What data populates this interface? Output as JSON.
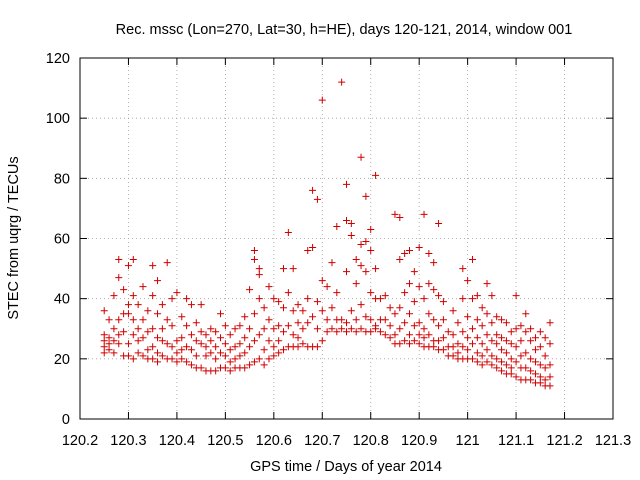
{
  "chart_data": {
    "type": "scatter",
    "title": "Rec. mssc (Lon=270, Lat=30, h=HE), days 120-121, 2014, window 001",
    "xlabel": "GPS time / Days of year 2014",
    "ylabel": "STEC from uqrg / TECUs",
    "xlim": [
      120.2,
      121.3
    ],
    "ylim": [
      0,
      120
    ],
    "xticks": [
      120.2,
      120.3,
      120.4,
      120.5,
      120.6,
      120.7,
      120.8,
      120.9,
      121.0,
      121.1,
      121.2,
      121.3
    ],
    "xtick_labels": [
      "120.2",
      "120.3",
      "120.4",
      "120.5",
      "120.6",
      "120.7",
      "120.8",
      "120.9",
      "121",
      "121.1",
      "121.2",
      "121.3"
    ],
    "yticks": [
      0,
      20,
      40,
      60,
      80,
      100,
      120
    ],
    "ytick_labels": [
      "0",
      "20",
      "40",
      "60",
      "80",
      "100",
      "120"
    ],
    "grid": true,
    "marker": "+",
    "color": "#d00000",
    "points": [
      [
        120.25,
        36
      ],
      [
        120.25,
        28
      ],
      [
        120.25,
        26
      ],
      [
        120.25,
        24
      ],
      [
        120.25,
        22
      ],
      [
        120.26,
        33
      ],
      [
        120.26,
        27
      ],
      [
        120.26,
        25
      ],
      [
        120.26,
        23
      ],
      [
        120.27,
        41
      ],
      [
        120.27,
        30
      ],
      [
        120.27,
        26
      ],
      [
        120.27,
        22
      ],
      [
        120.28,
        53
      ],
      [
        120.28,
        47
      ],
      [
        120.28,
        33
      ],
      [
        120.28,
        28
      ],
      [
        120.28,
        25
      ],
      [
        120.29,
        43
      ],
      [
        120.29,
        35
      ],
      [
        120.29,
        29
      ],
      [
        120.29,
        21
      ],
      [
        120.3,
        51
      ],
      [
        120.3,
        38
      ],
      [
        120.3,
        35
      ],
      [
        120.3,
        25
      ],
      [
        120.3,
        21
      ],
      [
        120.31,
        53
      ],
      [
        120.31,
        41
      ],
      [
        120.31,
        33
      ],
      [
        120.31,
        28
      ],
      [
        120.31,
        20
      ],
      [
        120.32,
        38
      ],
      [
        120.32,
        30
      ],
      [
        120.32,
        26
      ],
      [
        120.32,
        22
      ],
      [
        120.33,
        44
      ],
      [
        120.33,
        33
      ],
      [
        120.33,
        27
      ],
      [
        120.33,
        21
      ],
      [
        120.34,
        36
      ],
      [
        120.34,
        29
      ],
      [
        120.34,
        23
      ],
      [
        120.34,
        20
      ],
      [
        120.35,
        51
      ],
      [
        120.35,
        41
      ],
      [
        120.35,
        30
      ],
      [
        120.35,
        24
      ],
      [
        120.35,
        20
      ],
      [
        120.36,
        46
      ],
      [
        120.36,
        35
      ],
      [
        120.36,
        27
      ],
      [
        120.36,
        22
      ],
      [
        120.36,
        19
      ],
      [
        120.37,
        38
      ],
      [
        120.37,
        30
      ],
      [
        120.37,
        26
      ],
      [
        120.37,
        21
      ],
      [
        120.38,
        52
      ],
      [
        120.38,
        33
      ],
      [
        120.38,
        25
      ],
      [
        120.38,
        20
      ],
      [
        120.39,
        40
      ],
      [
        120.39,
        31
      ],
      [
        120.39,
        24
      ],
      [
        120.39,
        20
      ],
      [
        120.4,
        42
      ],
      [
        120.4,
        26
      ],
      [
        120.4,
        22
      ],
      [
        120.4,
        19
      ],
      [
        120.41,
        34
      ],
      [
        120.41,
        27
      ],
      [
        120.41,
        23
      ],
      [
        120.41,
        20
      ],
      [
        120.42,
        40
      ],
      [
        120.42,
        31
      ],
      [
        120.42,
        24
      ],
      [
        120.42,
        19
      ],
      [
        120.43,
        38
      ],
      [
        120.43,
        28
      ],
      [
        120.43,
        23
      ],
      [
        120.43,
        18
      ],
      [
        120.44,
        32
      ],
      [
        120.44,
        26
      ],
      [
        120.44,
        21
      ],
      [
        120.44,
        17
      ],
      [
        120.45,
        38
      ],
      [
        120.45,
        29
      ],
      [
        120.45,
        25
      ],
      [
        120.45,
        17
      ],
      [
        120.46,
        28
      ],
      [
        120.46,
        24
      ],
      [
        120.46,
        21
      ],
      [
        120.46,
        16
      ],
      [
        120.47,
        30
      ],
      [
        120.47,
        26
      ],
      [
        120.47,
        22
      ],
      [
        120.47,
        16
      ],
      [
        120.48,
        29
      ],
      [
        120.48,
        24
      ],
      [
        120.48,
        20
      ],
      [
        120.48,
        16
      ],
      [
        120.49,
        35
      ],
      [
        120.49,
        27
      ],
      [
        120.49,
        22
      ],
      [
        120.49,
        17
      ],
      [
        120.5,
        31
      ],
      [
        120.5,
        25
      ],
      [
        120.5,
        21
      ],
      [
        120.5,
        17
      ],
      [
        120.51,
        28
      ],
      [
        120.51,
        23
      ],
      [
        120.51,
        19
      ],
      [
        120.51,
        16
      ],
      [
        120.52,
        30
      ],
      [
        120.52,
        24
      ],
      [
        120.52,
        20
      ],
      [
        120.52,
        17
      ],
      [
        120.53,
        31
      ],
      [
        120.53,
        25
      ],
      [
        120.53,
        21
      ],
      [
        120.53,
        17
      ],
      [
        120.54,
        34
      ],
      [
        120.54,
        27
      ],
      [
        120.54,
        22
      ],
      [
        120.54,
        17
      ],
      [
        120.55,
        43
      ],
      [
        120.55,
        30
      ],
      [
        120.55,
        24
      ],
      [
        120.55,
        18
      ],
      [
        120.56,
        56
      ],
      [
        120.56,
        53
      ],
      [
        120.56,
        35
      ],
      [
        120.56,
        26
      ],
      [
        120.56,
        19
      ],
      [
        120.57,
        50
      ],
      [
        120.57,
        48
      ],
      [
        120.57,
        40
      ],
      [
        120.57,
        28
      ],
      [
        120.57,
        20
      ],
      [
        120.58,
        37
      ],
      [
        120.58,
        30
      ],
      [
        120.58,
        23
      ],
      [
        120.58,
        18
      ],
      [
        120.59,
        44
      ],
      [
        120.59,
        33
      ],
      [
        120.59,
        26
      ],
      [
        120.59,
        20
      ],
      [
        120.6,
        40
      ],
      [
        120.6,
        30
      ],
      [
        120.6,
        24
      ],
      [
        120.6,
        21
      ],
      [
        120.61,
        39
      ],
      [
        120.61,
        31
      ],
      [
        120.61,
        26
      ],
      [
        120.61,
        22
      ],
      [
        120.62,
        50
      ],
      [
        120.62,
        37
      ],
      [
        120.62,
        29
      ],
      [
        120.62,
        23
      ],
      [
        120.63,
        62
      ],
      [
        120.63,
        42
      ],
      [
        120.63,
        31
      ],
      [
        120.63,
        24
      ],
      [
        120.64,
        50
      ],
      [
        120.64,
        36
      ],
      [
        120.64,
        28
      ],
      [
        120.64,
        24
      ],
      [
        120.65,
        38
      ],
      [
        120.65,
        32
      ],
      [
        120.65,
        27
      ],
      [
        120.65,
        24
      ],
      [
        120.66,
        36
      ],
      [
        120.66,
        30
      ],
      [
        120.66,
        25
      ],
      [
        120.67,
        56
      ],
      [
        120.67,
        40
      ],
      [
        120.67,
        32
      ],
      [
        120.67,
        24
      ],
      [
        120.68,
        76
      ],
      [
        120.68,
        57
      ],
      [
        120.68,
        34
      ],
      [
        120.68,
        24
      ],
      [
        120.69,
        73
      ],
      [
        120.69,
        39
      ],
      [
        120.69,
        30
      ],
      [
        120.69,
        24
      ],
      [
        120.7,
        106
      ],
      [
        120.7,
        46
      ],
      [
        120.7,
        36
      ],
      [
        120.7,
        26
      ],
      [
        120.71,
        44
      ],
      [
        120.71,
        33
      ],
      [
        120.71,
        29
      ],
      [
        120.72,
        52
      ],
      [
        120.72,
        37
      ],
      [
        120.72,
        30
      ],
      [
        120.73,
        64
      ],
      [
        120.73,
        42
      ],
      [
        120.73,
        33
      ],
      [
        120.73,
        29
      ],
      [
        120.74,
        112
      ],
      [
        120.74,
        33
      ],
      [
        120.74,
        30
      ],
      [
        120.75,
        78
      ],
      [
        120.75,
        66
      ],
      [
        120.75,
        49
      ],
      [
        120.75,
        32
      ],
      [
        120.75,
        29
      ],
      [
        120.76,
        65
      ],
      [
        120.76,
        61
      ],
      [
        120.76,
        36
      ],
      [
        120.76,
        30
      ],
      [
        120.77,
        53
      ],
      [
        120.77,
        45
      ],
      [
        120.77,
        33
      ],
      [
        120.77,
        29
      ],
      [
        120.78,
        87
      ],
      [
        120.78,
        58
      ],
      [
        120.78,
        51
      ],
      [
        120.78,
        38
      ],
      [
        120.78,
        30
      ],
      [
        120.79,
        74
      ],
      [
        120.79,
        59
      ],
      [
        120.79,
        49
      ],
      [
        120.79,
        34
      ],
      [
        120.79,
        29
      ],
      [
        120.8,
        63
      ],
      [
        120.8,
        56
      ],
      [
        120.8,
        42
      ],
      [
        120.8,
        33
      ],
      [
        120.8,
        29
      ],
      [
        120.81,
        81
      ],
      [
        120.81,
        50
      ],
      [
        120.81,
        40
      ],
      [
        120.81,
        31
      ],
      [
        120.81,
        30
      ],
      [
        120.82,
        40
      ],
      [
        120.82,
        33
      ],
      [
        120.82,
        29
      ],
      [
        120.83,
        41
      ],
      [
        120.83,
        33
      ],
      [
        120.83,
        28
      ],
      [
        120.84,
        37
      ],
      [
        120.84,
        31
      ],
      [
        120.84,
        27
      ],
      [
        120.85,
        68
      ],
      [
        120.85,
        35
      ],
      [
        120.85,
        28
      ],
      [
        120.85,
        25
      ],
      [
        120.86,
        67
      ],
      [
        120.86,
        53
      ],
      [
        120.86,
        37
      ],
      [
        120.86,
        30
      ],
      [
        120.86,
        25
      ],
      [
        120.87,
        55
      ],
      [
        120.87,
        42
      ],
      [
        120.87,
        32
      ],
      [
        120.87,
        26
      ],
      [
        120.88,
        56
      ],
      [
        120.88,
        45
      ],
      [
        120.88,
        35
      ],
      [
        120.88,
        28
      ],
      [
        120.88,
        25
      ],
      [
        120.89,
        49
      ],
      [
        120.89,
        39
      ],
      [
        120.89,
        31
      ],
      [
        120.89,
        26
      ],
      [
        120.9,
        57
      ],
      [
        120.9,
        44
      ],
      [
        120.9,
        32
      ],
      [
        120.9,
        28
      ],
      [
        120.9,
        25
      ],
      [
        120.91,
        68
      ],
      [
        120.91,
        40
      ],
      [
        120.91,
        30
      ],
      [
        120.91,
        27
      ],
      [
        120.91,
        24
      ],
      [
        120.92,
        55
      ],
      [
        120.92,
        45
      ],
      [
        120.92,
        35
      ],
      [
        120.92,
        28
      ],
      [
        120.92,
        24
      ],
      [
        120.93,
        52
      ],
      [
        120.93,
        43
      ],
      [
        120.93,
        33
      ],
      [
        120.93,
        26
      ],
      [
        120.93,
        24
      ],
      [
        120.94,
        65
      ],
      [
        120.94,
        41
      ],
      [
        120.94,
        31
      ],
      [
        120.94,
        26
      ],
      [
        120.94,
        23
      ],
      [
        120.95,
        39
      ],
      [
        120.95,
        33
      ],
      [
        120.95,
        27
      ],
      [
        120.95,
        23
      ],
      [
        120.96,
        29
      ],
      [
        120.96,
        24
      ],
      [
        120.96,
        21
      ],
      [
        120.97,
        36
      ],
      [
        120.97,
        28
      ],
      [
        120.97,
        24
      ],
      [
        120.97,
        21
      ],
      [
        120.98,
        32
      ],
      [
        120.98,
        25
      ],
      [
        120.98,
        22
      ],
      [
        120.98,
        20
      ],
      [
        120.99,
        50
      ],
      [
        120.99,
        40
      ],
      [
        120.99,
        29
      ],
      [
        120.99,
        24
      ],
      [
        120.99,
        20
      ],
      [
        121.0,
        46
      ],
      [
        121.0,
        34
      ],
      [
        121.0,
        27
      ],
      [
        121.0,
        23
      ],
      [
        121.0,
        20
      ],
      [
        121.01,
        53
      ],
      [
        121.01,
        40
      ],
      [
        121.01,
        30
      ],
      [
        121.01,
        25
      ],
      [
        121.01,
        20
      ],
      [
        121.02,
        41
      ],
      [
        121.02,
        33
      ],
      [
        121.02,
        27
      ],
      [
        121.02,
        22
      ],
      [
        121.02,
        19
      ],
      [
        121.03,
        37
      ],
      [
        121.03,
        31
      ],
      [
        121.03,
        25
      ],
      [
        121.03,
        21
      ],
      [
        121.03,
        18
      ],
      [
        121.04,
        45
      ],
      [
        121.04,
        35
      ],
      [
        121.04,
        28
      ],
      [
        121.04,
        23
      ],
      [
        121.04,
        19
      ],
      [
        121.05,
        41
      ],
      [
        121.05,
        32
      ],
      [
        121.05,
        26
      ],
      [
        121.05,
        21
      ],
      [
        121.05,
        18
      ],
      [
        121.06,
        34
      ],
      [
        121.06,
        28
      ],
      [
        121.06,
        25
      ],
      [
        121.06,
        20
      ],
      [
        121.06,
        17
      ],
      [
        121.07,
        33
      ],
      [
        121.07,
        27
      ],
      [
        121.07,
        23
      ],
      [
        121.07,
        19
      ],
      [
        121.07,
        16
      ],
      [
        121.08,
        32
      ],
      [
        121.08,
        26
      ],
      [
        121.08,
        22
      ],
      [
        121.08,
        18
      ],
      [
        121.08,
        15
      ],
      [
        121.09,
        29
      ],
      [
        121.09,
        25
      ],
      [
        121.09,
        20
      ],
      [
        121.09,
        17
      ],
      [
        121.09,
        15
      ],
      [
        121.1,
        41
      ],
      [
        121.1,
        30
      ],
      [
        121.1,
        24
      ],
      [
        121.1,
        19
      ],
      [
        121.1,
        14
      ],
      [
        121.11,
        31
      ],
      [
        121.11,
        26
      ],
      [
        121.11,
        21
      ],
      [
        121.11,
        17
      ],
      [
        121.11,
        13
      ],
      [
        121.12,
        35
      ],
      [
        121.12,
        29
      ],
      [
        121.12,
        22
      ],
      [
        121.12,
        17
      ],
      [
        121.12,
        13
      ],
      [
        121.13,
        30
      ],
      [
        121.13,
        26
      ],
      [
        121.13,
        20
      ],
      [
        121.13,
        16
      ],
      [
        121.13,
        13
      ],
      [
        121.14,
        27
      ],
      [
        121.14,
        23
      ],
      [
        121.14,
        19
      ],
      [
        121.14,
        15
      ],
      [
        121.14,
        12
      ],
      [
        121.15,
        29
      ],
      [
        121.15,
        24
      ],
      [
        121.15,
        18
      ],
      [
        121.15,
        14
      ],
      [
        121.15,
        12
      ],
      [
        121.16,
        27
      ],
      [
        121.16,
        21
      ],
      [
        121.16,
        17
      ],
      [
        121.16,
        13
      ],
      [
        121.16,
        11
      ],
      [
        121.17,
        32
      ],
      [
        121.17,
        25
      ],
      [
        121.17,
        18
      ],
      [
        121.17,
        14
      ],
      [
        121.17,
        11
      ]
    ]
  }
}
